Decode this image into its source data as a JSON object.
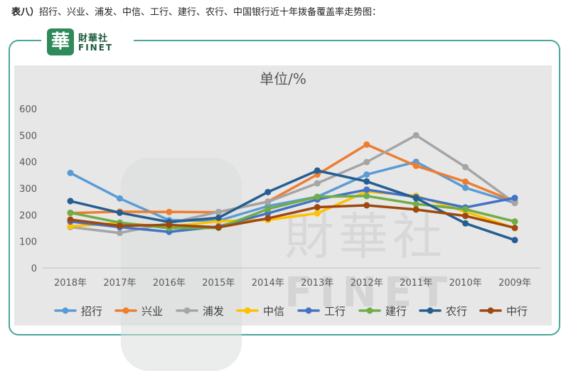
{
  "caption": {
    "prefix": "表八）",
    "text": "招行、兴业、浦发、中信、工行、建行、农行、中国银行近十年拨备覆盖率走势图："
  },
  "logo": {
    "mark": "華",
    "name": "財華社",
    "sub": "FINET"
  },
  "watermark": {
    "cn": "財華社",
    "en": "FINET"
  },
  "chart_data": {
    "type": "line",
    "title": "单位/%",
    "categories": [
      "2018年",
      "2017年",
      "2016年",
      "2015年",
      "2014年",
      "2013年",
      "2012年",
      "2011年",
      "2010年",
      "2009年"
    ],
    "ylim": [
      0,
      600
    ],
    "yticks": [
      0,
      100,
      200,
      300,
      400,
      500,
      600
    ],
    "grid": false,
    "legend_position": "bottom",
    "series": [
      {
        "name": "招行",
        "color": "#5b9bd5",
        "values": [
          358,
          262,
          180,
          178,
          233,
          268,
          352,
          400,
          302,
          245
        ]
      },
      {
        "name": "兴业",
        "color": "#ed7d31",
        "values": [
          207,
          212,
          211,
          210,
          250,
          352,
          465,
          385,
          325,
          250
        ]
      },
      {
        "name": "浦发",
        "color": "#a5a5a5",
        "values": [
          154,
          132,
          169,
          211,
          249,
          319,
          399,
          500,
          380,
          245
        ]
      },
      {
        "name": "中信",
        "color": "#ffc000",
        "values": [
          157,
          169,
          155,
          176,
          181,
          206,
          288,
          272,
          212,
          150
        ]
      },
      {
        "name": "工行",
        "color": "#4472c4",
        "values": [
          175,
          154,
          136,
          156,
          206,
          258,
          295,
          267,
          228,
          264
        ]
      },
      {
        "name": "建行",
        "color": "#70ad47",
        "values": [
          208,
          171,
          150,
          151,
          222,
          268,
          271,
          241,
          221,
          175
        ]
      },
      {
        "name": "农行",
        "color": "#255e91",
        "values": [
          252,
          208,
          173,
          189,
          286,
          367,
          326,
          263,
          168,
          105
        ]
      },
      {
        "name": "中行",
        "color": "#9e480e",
        "values": [
          182,
          159,
          162,
          153,
          187,
          229,
          236,
          220,
          196,
          151
        ]
      }
    ]
  }
}
